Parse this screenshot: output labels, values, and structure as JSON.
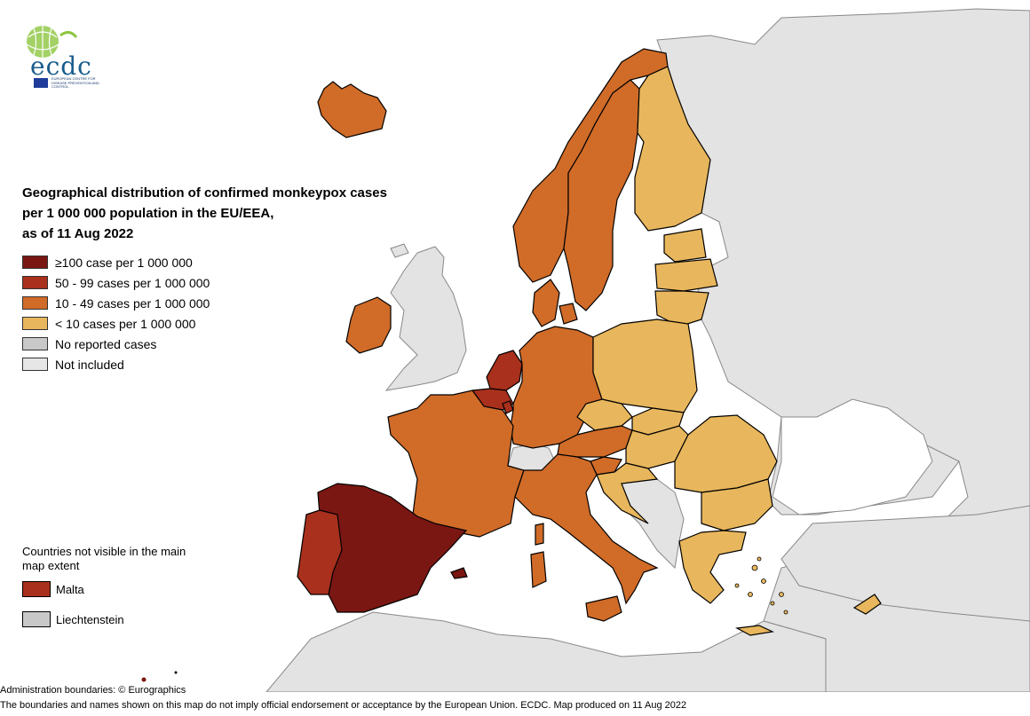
{
  "title_lines": [
    "Geographical distribution of confirmed monkeypox cases",
    "per 1 000 000 population in the EU/EEA,",
    "as of 11 Aug 2022"
  ],
  "logo": {
    "name": "ecdc",
    "subtitle": "EUROPEAN CENTRE FOR DISEASE PREVENTION AND CONTROL"
  },
  "legend": [
    {
      "label": "≥100 case per 1 000 000",
      "color": "#7a1712"
    },
    {
      "label": "50 - 99 cases per 1 000 000",
      "color": "#a8301c"
    },
    {
      "label": "10 - 49 cases per 1 000 000",
      "color": "#d06b28"
    },
    {
      "label": "< 10 cases per 1 000 000",
      "color": "#e8b65c"
    },
    {
      "label": "No reported cases",
      "color": "#c8c8c8"
    },
    {
      "label": "Not included",
      "color": "#e6e6e6"
    }
  ],
  "inset": {
    "title": "Countries not visible in the main map extent",
    "items": [
      {
        "label": "Malta",
        "color": "#a8301c"
      },
      {
        "label": "Liechtenstein",
        "color": "#c8c8c8"
      }
    ]
  },
  "footer": {
    "line1": "Administration boundaries: © Eurographics",
    "line2": "The boundaries and names shown on this map do not imply official endorsement or acceptance by the European Union. ECDC. Map produced on 11 Aug 2022"
  },
  "regions": [
    {
      "name": "Spain",
      "category": "≥100",
      "color": "#7a1712"
    },
    {
      "name": "Netherlands",
      "category": "50 - 99",
      "color": "#a8301c"
    },
    {
      "name": "Portugal",
      "category": "50 - 99",
      "color": "#a8301c"
    },
    {
      "name": "Malta",
      "category": "50 - 99",
      "color": "#a8301c"
    },
    {
      "name": "Belgium",
      "category": "50 - 99",
      "color": "#a8301c"
    },
    {
      "name": "Luxembourg",
      "category": "50 - 99",
      "color": "#a8301c"
    },
    {
      "name": "France",
      "category": "10 - 49",
      "color": "#d06b28"
    },
    {
      "name": "Germany",
      "category": "10 - 49",
      "color": "#d06b28"
    },
    {
      "name": "Italy",
      "category": "10 - 49",
      "color": "#d06b28"
    },
    {
      "name": "Ireland",
      "category": "10 - 49",
      "color": "#d06b28"
    },
    {
      "name": "Iceland",
      "category": "10 - 49",
      "color": "#d06b28"
    },
    {
      "name": "Norway",
      "category": "10 - 49",
      "color": "#d06b28"
    },
    {
      "name": "Sweden",
      "category": "10 - 49",
      "color": "#d06b28"
    },
    {
      "name": "Denmark",
      "category": "10 - 49",
      "color": "#d06b28"
    },
    {
      "name": "Austria",
      "category": "10 - 49",
      "color": "#d06b28"
    },
    {
      "name": "Slovenia",
      "category": "10 - 49",
      "color": "#d06b28"
    },
    {
      "name": "Finland",
      "category": "< 10",
      "color": "#e8b65c"
    },
    {
      "name": "Estonia",
      "category": "< 10",
      "color": "#e8b65c"
    },
    {
      "name": "Latvia",
      "category": "< 10",
      "color": "#e8b65c"
    },
    {
      "name": "Lithuania",
      "category": "< 10",
      "color": "#e8b65c"
    },
    {
      "name": "Poland",
      "category": "< 10",
      "color": "#e8b65c"
    },
    {
      "name": "Czechia",
      "category": "< 10",
      "color": "#e8b65c"
    },
    {
      "name": "Slovakia",
      "category": "< 10",
      "color": "#e8b65c"
    },
    {
      "name": "Hungary",
      "category": "< 10",
      "color": "#e8b65c"
    },
    {
      "name": "Romania",
      "category": "< 10",
      "color": "#e8b65c"
    },
    {
      "name": "Bulgaria",
      "category": "< 10",
      "color": "#e8b65c"
    },
    {
      "name": "Croatia",
      "category": "< 10",
      "color": "#e8b65c"
    },
    {
      "name": "Greece",
      "category": "< 10",
      "color": "#e8b65c"
    },
    {
      "name": "Cyprus",
      "category": "< 10",
      "color": "#e8b65c"
    },
    {
      "name": "Switzerland",
      "category": "Not included",
      "color": "#e6e6e6"
    },
    {
      "name": "United Kingdom",
      "category": "Not included",
      "color": "#e6e6e6"
    }
  ],
  "colors": {
    "background_land": "#e3e3e3",
    "sea": "#ffffff",
    "border": "#000000",
    "non_eu_border": "#888888"
  }
}
